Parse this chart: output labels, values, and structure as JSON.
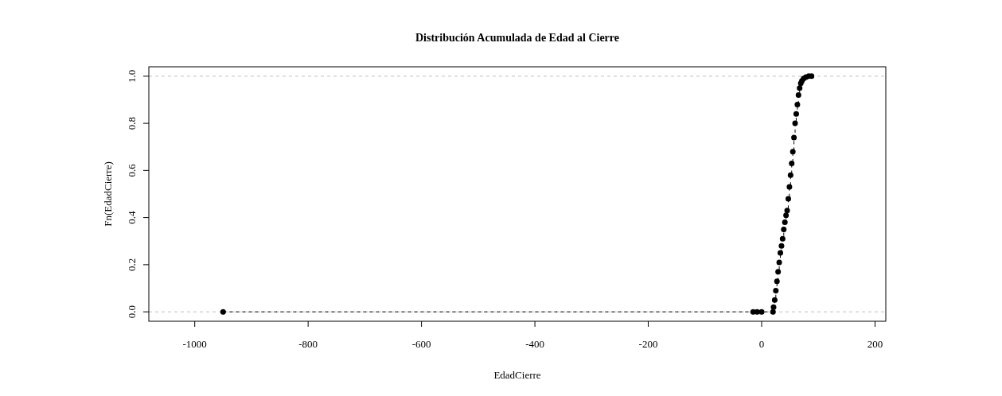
{
  "chart_data": {
    "type": "step",
    "title": "Distribución Acumulada de Edad al Cierre",
    "xlabel": "EdadCierre",
    "ylabel": "Fn(EdadCierre)",
    "series": [
      {
        "color": "#000000",
        "x": [
          -950,
          -15,
          -8,
          0,
          20,
          21,
          23,
          25,
          27,
          29,
          31,
          33,
          35,
          37,
          39,
          41,
          43,
          45,
          47,
          49,
          51,
          53,
          55,
          57,
          59,
          61,
          63,
          65,
          67,
          69,
          71,
          74,
          78,
          83,
          88
        ],
        "values": [
          0,
          0,
          0,
          0,
          0,
          0.02,
          0.05,
          0.09,
          0.13,
          0.17,
          0.21,
          0.25,
          0.28,
          0.31,
          0.35,
          0.38,
          0.41,
          0.43,
          0.48,
          0.53,
          0.58,
          0.63,
          0.68,
          0.74,
          0.8,
          0.84,
          0.88,
          0.92,
          0.95,
          0.97,
          0.98,
          0.99,
          0.996,
          1,
          1
        ]
      }
    ],
    "xlim": [
      -1081,
      219
    ],
    "ylim": [
      -0.04,
      1.04
    ],
    "xticks": [
      -1000,
      -800,
      -600,
      -400,
      -200,
      0,
      200
    ],
    "yticks": [
      {
        "value": 0,
        "label": "0.0"
      },
      {
        "value": 0.2,
        "label": "0.2"
      },
      {
        "value": 0.4,
        "label": "0.4"
      },
      {
        "value": 0.6,
        "label": "0.6"
      },
      {
        "value": 0.8,
        "label": "0.8"
      },
      {
        "value": 1,
        "label": "1.0"
      }
    ],
    "ref_lines": [
      {
        "axis": "y",
        "value": 0,
        "color": "#bebebe",
        "line_style": "dashed"
      },
      {
        "axis": "y",
        "value": 1,
        "color": "#bebebe",
        "line_style": "dashed"
      }
    ],
    "marker": "circle",
    "line_style": "dashed",
    "grid": false
  }
}
